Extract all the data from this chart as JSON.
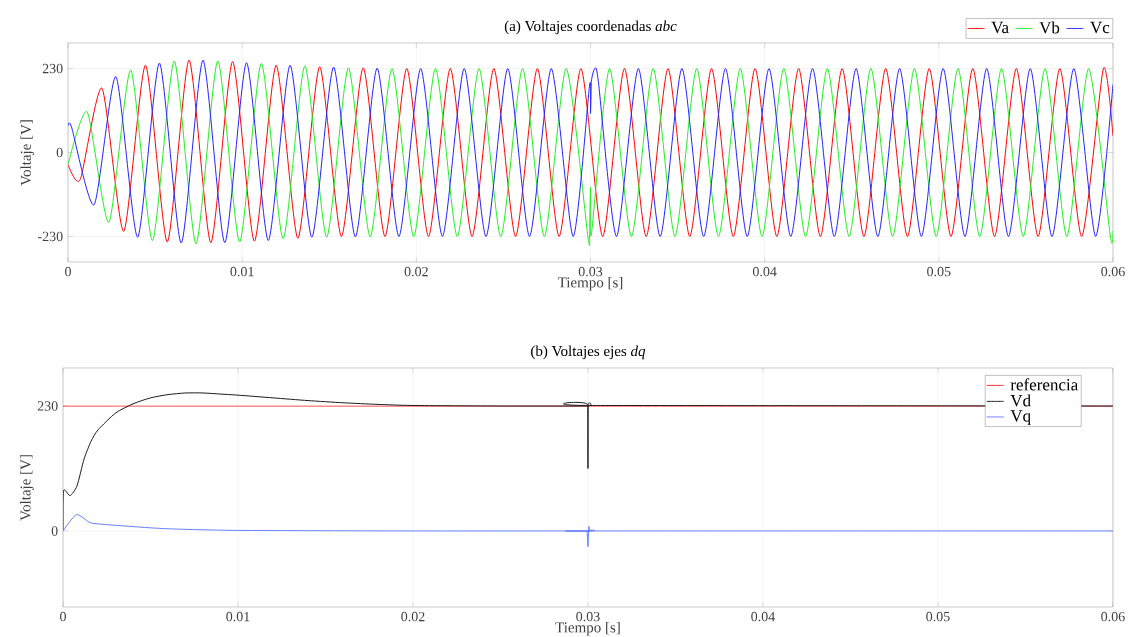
{
  "chart_data": [
    {
      "type": "line",
      "title": "(a) Voltajes coordenadas *abc*",
      "xlabel": "Tiempo [s]",
      "ylabel": "Voltaje [V]",
      "xlim": [
        0,
        0.06
      ],
      "ylim": [
        -300,
        300
      ],
      "xticks": [
        0,
        0.01,
        0.02,
        0.03,
        0.04,
        0.05,
        0.06
      ],
      "yticks": [
        -230,
        0,
        230
      ],
      "grid": true,
      "legend": "top",
      "series": [
        {
          "name": "Va",
          "color": "#ff0000",
          "x": [
            0,
            0.0007,
            0.00195,
            0.0032,
            0.00445,
            0.0057,
            0.00695,
            0.0082,
            0.00945,
            0.0107,
            0.01195,
            0.0132,
            0.01445,
            0.0157,
            0.01695,
            0.0182,
            0.01945,
            0.0207,
            0.02195,
            0.0232,
            0.02445,
            0.0257,
            0.02695,
            0.0282,
            0.02945,
            0.0307,
            0.03195,
            0.0332,
            0.03445,
            0.0357,
            0.03695,
            0.0382,
            0.03945,
            0.0407,
            0.04195,
            0.0432,
            0.04445,
            0.0457,
            0.04695,
            0.0482,
            0.04945,
            0.0507,
            0.05195,
            0.0532,
            0.05445,
            0.0557,
            0.05695,
            0.0582,
            0.05945,
            0.06
          ],
          "values": [
            -33,
            -74,
            176,
            -216,
            239,
            -245,
            253,
            -247,
            249,
            -243,
            239,
            -235,
            235,
            -230,
            232,
            -230,
            230,
            -230,
            230,
            -230,
            230,
            -230,
            230,
            -230,
            230,
            -230,
            230,
            -230,
            230,
            -230,
            230,
            -230,
            230,
            -230,
            230,
            -230,
            230,
            -230,
            230,
            -230,
            230,
            -230,
            230,
            -230,
            230,
            -230,
            230,
            -230,
            230,
            45
          ]
        },
        {
          "name": "Vb",
          "color": "#22ee22",
          "x": [
            0,
            0.0011,
            0.00235,
            0.0036,
            0.00485,
            0.0061,
            0.00735,
            0.0086,
            0.00985,
            0.0111,
            0.01235,
            0.0136,
            0.01485,
            0.0161,
            0.01735,
            0.0186,
            0.01985,
            0.0211,
            0.02235,
            0.0236,
            0.02485,
            0.0261,
            0.02735,
            0.0286,
            0.02985,
            0.02995,
            0.03,
            0.03005,
            0.0311,
            0.03235,
            0.0336,
            0.03485,
            0.0361,
            0.03735,
            0.0386,
            0.03985,
            0.0411,
            0.04235,
            0.0436,
            0.04485,
            0.0461,
            0.04735,
            0.0486,
            0.04985,
            0.0511,
            0.05235,
            0.0536,
            0.05485,
            0.0561,
            0.05735,
            0.0586,
            0.05985,
            0.06
          ],
          "values": [
            -33,
            111,
            -191,
            226,
            -241,
            251,
            -250,
            251,
            -245,
            244,
            -236,
            237,
            -232,
            232,
            -231,
            230,
            -230,
            230,
            -230,
            230,
            -230,
            230,
            -230,
            230,
            -230,
            -226,
            -96,
            -224,
            230,
            -230,
            230,
            -230,
            230,
            -230,
            230,
            -230,
            230,
            -230,
            230,
            -230,
            230,
            -230,
            230,
            -230,
            230,
            -230,
            230,
            -230,
            230,
            -230,
            230,
            -230,
            -215
          ]
        },
        {
          "name": "Vc",
          "color": "#2222ff",
          "x": [
            0,
            0.0002,
            0.0015,
            0.00275,
            0.004,
            0.00525,
            0.0065,
            0.00775,
            0.009,
            0.01025,
            0.0115,
            0.01275,
            0.014,
            0.01525,
            0.0165,
            0.01775,
            0.019,
            0.02025,
            0.0215,
            0.02275,
            0.024,
            0.02525,
            0.0265,
            0.02775,
            0.029,
            0.02995,
            0.03,
            0.03005,
            0.03025,
            0.03045,
            0.0315,
            0.03275,
            0.034,
            0.03525,
            0.0365,
            0.03775,
            0.039,
            0.04025,
            0.0415,
            0.04275,
            0.044,
            0.04525,
            0.0465,
            0.04775,
            0.049,
            0.05025,
            0.0515,
            0.05275,
            0.054,
            0.05525,
            0.0565,
            0.05775,
            0.059,
            0.06
          ],
          "values": [
            72,
            70,
            -143,
            208,
            -232,
            245,
            -248,
            253,
            -247,
            246,
            -241,
            239,
            -232,
            234,
            -231,
            231,
            -230,
            230,
            -230,
            230,
            -230,
            230,
            -230,
            230,
            -230,
            185,
            107,
            195,
            230,
            195,
            -230,
            230,
            -230,
            230,
            -230,
            230,
            -230,
            230,
            -230,
            230,
            -230,
            230,
            -230,
            230,
            -230,
            230,
            -230,
            230,
            -230,
            230,
            -230,
            230,
            -230,
            186
          ]
        }
      ]
    },
    {
      "type": "line",
      "title": "(b) Voltajes ejes *dq*",
      "xlabel": "Tiempo [s]",
      "ylabel": "Voltaje [V]",
      "xlim": [
        0,
        0.06
      ],
      "ylim": [
        -140,
        300
      ],
      "xticks": [
        0,
        0.01,
        0.02,
        0.03,
        0.04,
        0.05,
        0.06
      ],
      "yticks": [
        0,
        230
      ],
      "grid": true,
      "legend": "top right",
      "series": [
        {
          "name": "referencia",
          "color": "#ff2020",
          "x": [
            0,
            0.06
          ],
          "values": [
            230,
            230
          ]
        },
        {
          "name": "Vd",
          "color": "#1a1a1a",
          "x": [
            0,
            3e-05,
            0.0004,
            0.0008,
            0.0012,
            0.0016,
            0.002,
            0.003,
            0.004,
            0.005,
            0.006,
            0.007,
            0.008,
            0.009,
            0.01,
            0.012,
            0.014,
            0.016,
            0.018,
            0.02,
            0.025,
            0.0299,
            0.02999,
            0.03,
            0.03001,
            0.0301,
            0.06
          ],
          "values": [
            0,
            74,
            65,
            83,
            132,
            165,
            186,
            217,
            234,
            245,
            251,
            254,
            254,
            252,
            250,
            245,
            240,
            236,
            233,
            231,
            230,
            230,
            230,
            115,
            231,
            231,
            230
          ]
        },
        {
          "name": "Vq",
          "color": "#6680ff",
          "x": [
            0,
            0.00076,
            0.0015,
            0.002,
            0.004,
            0.006,
            0.01,
            0.02,
            0.0299,
            0.02995,
            0.03,
            0.03005,
            0.0301,
            0.0302,
            0.06
          ],
          "values": [
            0,
            30,
            16,
            13,
            8,
            4,
            1,
            0,
            0,
            0,
            -29,
            8,
            0,
            0,
            0
          ]
        }
      ]
    }
  ]
}
